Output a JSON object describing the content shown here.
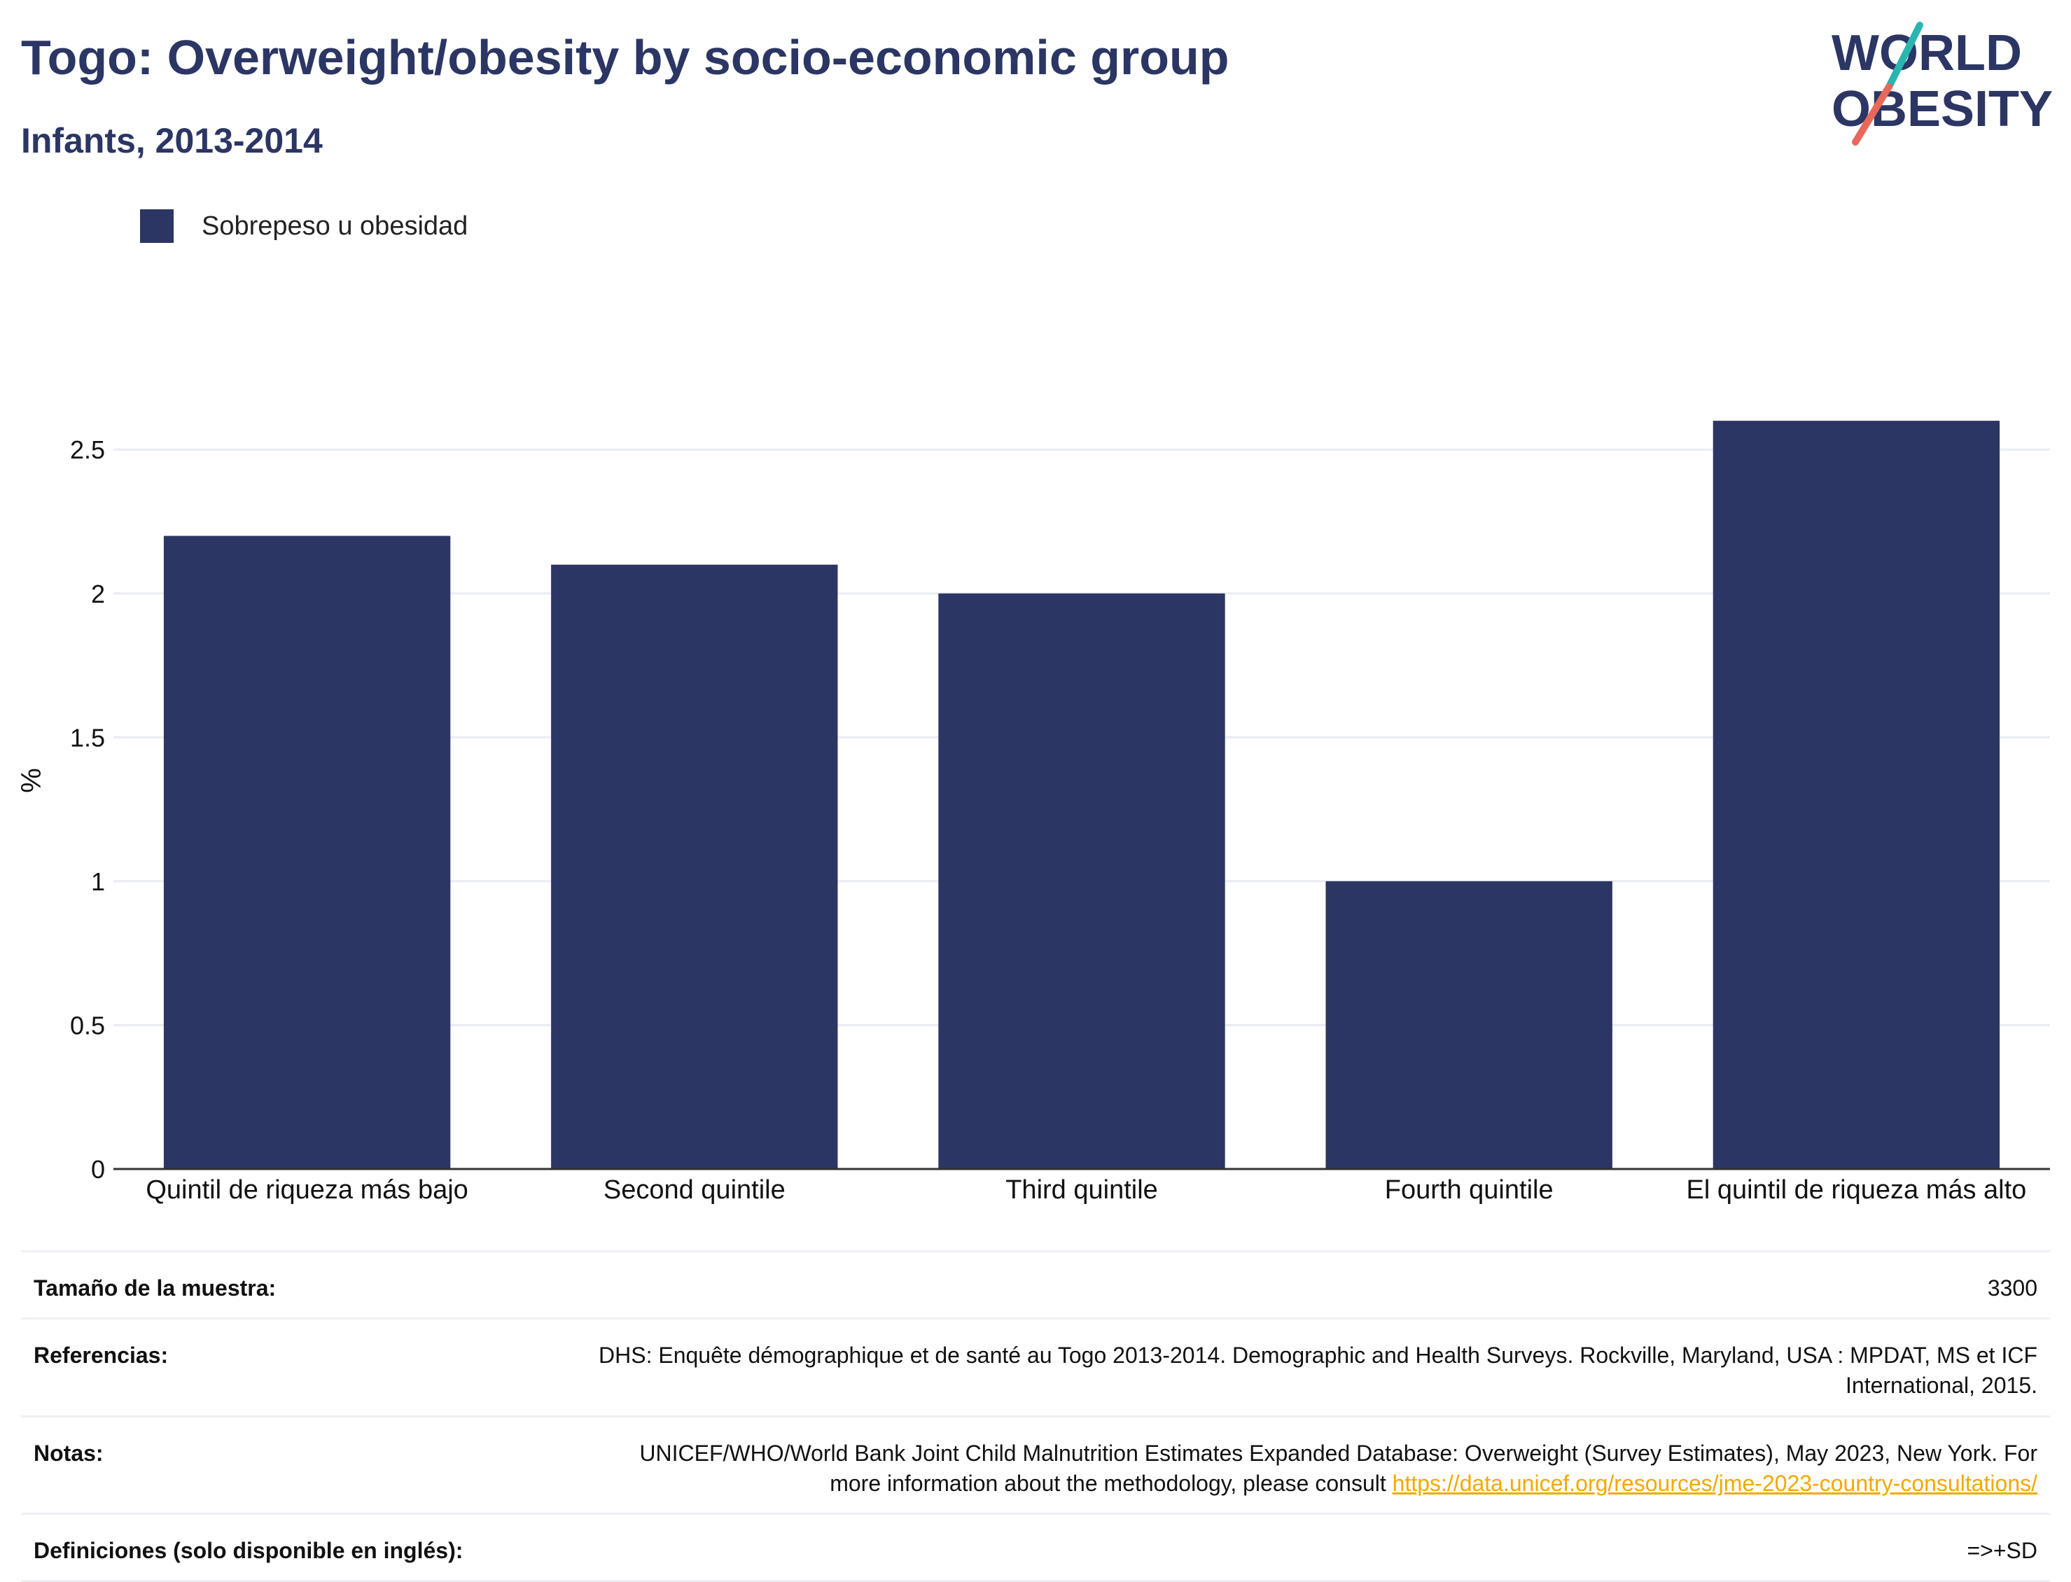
{
  "header": {
    "title": "Togo: Overweight/obesity by socio-economic group",
    "subtitle": "Infants, 2013-2014"
  },
  "logo": {
    "line1": "WORLD",
    "line2": "OBESITY"
  },
  "colors": {
    "bar": "#2b3664",
    "accent_teal": "#2bb5b0",
    "accent_red": "#e8685a"
  },
  "chart_data": {
    "type": "bar",
    "categories": [
      "Quintil de riqueza más bajo",
      "Second quintile",
      "Third quintile",
      "Fourth quintile",
      "El quintil de riqueza más alto"
    ],
    "series": [
      {
        "name": "Sobrepeso u obesidad",
        "values": [
          2.2,
          2.1,
          2.0,
          1.0,
          2.6
        ]
      }
    ],
    "ylabel": "%",
    "ylim": [
      0,
      2.7
    ],
    "yticks": [
      0,
      0.5,
      1,
      1.5,
      2,
      2.5
    ],
    "ytick_labels": [
      "0",
      "0.5",
      "1",
      "1.5",
      "2",
      "2.5"
    ],
    "grid": true,
    "legend": "top-left"
  },
  "info": {
    "sample_label": "Tamaño de la muestra:",
    "sample_value": "3300",
    "refs_label": "Referencias:",
    "refs_value": "DHS: Enquête démographique et de santé au Togo 2013-2014. Demographic and Health Surveys. Rockville, Maryland, USA : MPDAT, MS et ICF International, 2015.",
    "notes_label": "Notas:",
    "notes_value": "UNICEF/WHO/World Bank Joint Child Malnutrition Estimates Expanded Database: Overweight (Survey Estimates), May 2023, New York. For more information about the methodology, please consult ",
    "notes_link": "https://data.unicef.org/resources/jme-2023-country-consultations/",
    "defs_label": "Definiciones (solo disponible en inglés):",
    "defs_value": "=>+SD"
  }
}
